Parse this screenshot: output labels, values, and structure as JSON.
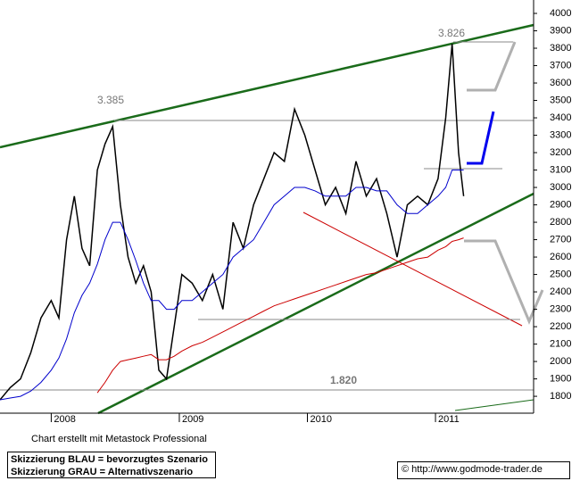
{
  "chart_data": {
    "type": "line",
    "annotations": [
      "3.385",
      "3.826",
      "1.820"
    ],
    "x": [
      2007.6,
      2007.68,
      2007.76,
      2007.84,
      2007.92,
      2008.0,
      2008.06,
      2008.12,
      2008.18,
      2008.24,
      2008.3,
      2008.36,
      2008.42,
      2008.48,
      2008.54,
      2008.6,
      2008.66,
      2008.72,
      2008.78,
      2008.84,
      2008.9,
      2008.96,
      2009.02,
      2009.1,
      2009.18,
      2009.26,
      2009.34,
      2009.42,
      2009.5,
      2009.58,
      2009.66,
      2009.74,
      2009.82,
      2009.9,
      2009.98,
      2010.06,
      2010.14,
      2010.22,
      2010.3,
      2010.38,
      2010.46,
      2010.54,
      2010.62,
      2010.7,
      2010.78,
      2010.86,
      2010.94,
      2011.02,
      2011.08,
      2011.13,
      2011.18,
      2011.22
    ],
    "series": [
      {
        "color": "#000000",
        "values": [
          1780,
          1850,
          1900,
          2050,
          2250,
          2350,
          2250,
          2700,
          2950,
          2650,
          2550,
          3100,
          3250,
          3350,
          2900,
          2600,
          2450,
          2550,
          2400,
          1950,
          1900,
          2200,
          2500,
          2450,
          2350,
          2500,
          2300,
          2800,
          2650,
          2900,
          3050,
          3200,
          3150,
          3450,
          3300,
          3100,
          2900,
          3000,
          2850,
          3150,
          2950,
          3050,
          2850,
          2600,
          2900,
          2950,
          2900,
          3050,
          3400,
          3826,
          3200,
          2950
        ]
      },
      {
        "color": "#0000cc",
        "values": [
          1780,
          1790,
          1800,
          1830,
          1880,
          1950,
          2020,
          2130,
          2280,
          2380,
          2450,
          2560,
          2700,
          2800,
          2800,
          2700,
          2580,
          2450,
          2350,
          2350,
          2300,
          2300,
          2350,
          2350,
          2400,
          2450,
          2500,
          2600,
          2650,
          2700,
          2800,
          2900,
          2950,
          3000,
          3000,
          2980,
          2950,
          2950,
          2950,
          3000,
          3000,
          2980,
          2980,
          2900,
          2850,
          2850,
          2900,
          2950,
          3000,
          3100,
          3100,
          3100
        ]
      },
      {
        "color": "#cc0000",
        "values": [
          null,
          null,
          null,
          null,
          null,
          null,
          null,
          null,
          null,
          null,
          null,
          1820,
          1880,
          1950,
          2000,
          2010,
          2020,
          2030,
          2040,
          2010,
          2010,
          2030,
          2060,
          2090,
          2110,
          2140,
          2170,
          2200,
          2230,
          2260,
          2290,
          2320,
          2340,
          2360,
          2380,
          2400,
          2420,
          2440,
          2460,
          2480,
          2500,
          2510,
          2530,
          2550,
          2570,
          2590,
          2600,
          2640,
          2660,
          2690,
          2700,
          2710
        ]
      }
    ],
    "xlim": [
      2007.6,
      2011.766
    ],
    "xticks": [
      2008,
      2009,
      2010,
      2011
    ],
    "ylim": [
      1703,
      4077
    ],
    "yticks": [
      1800,
      1900,
      2000,
      2100,
      2200,
      2300,
      2400,
      2500,
      2600,
      2700,
      2800,
      2900,
      3000,
      3100,
      3200,
      3300,
      3400,
      3500,
      3600,
      3700,
      3800,
      3900,
      4000
    ]
  },
  "footer": {
    "credit": "Chart erstellt mit Metastock Professional",
    "legend": [
      "Skizzierung BLAU = bevorzugtes Szenario",
      "Skizzierung GRAU = Alternativszenario"
    ],
    "copyright": "© http://www.godmode-trader.de"
  }
}
